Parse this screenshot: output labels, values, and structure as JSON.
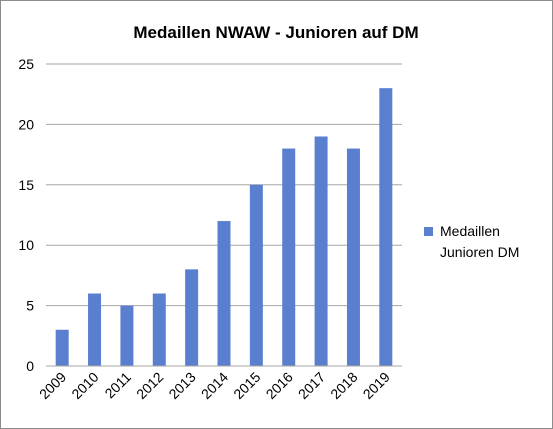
{
  "chart_data": {
    "type": "bar",
    "title": "Medaillen NWAW - Junioren auf DM",
    "xlabel": "",
    "ylabel": "",
    "categories": [
      "2009",
      "2010",
      "2011",
      "2012",
      "2013",
      "2014",
      "2015",
      "2016",
      "2017",
      "2018",
      "2019"
    ],
    "series": [
      {
        "name": "Medaillen Junioren DM",
        "values": [
          3,
          6,
          5,
          6,
          8,
          12,
          15,
          18,
          19,
          18,
          23
        ],
        "color": "#5b7fcf"
      }
    ],
    "ylim": [
      0,
      25
    ],
    "yticks": [
      0,
      5,
      10,
      15,
      20,
      25
    ],
    "grid": true,
    "legend_position": "right"
  },
  "legend": {
    "line1": "Medaillen",
    "line2": "Junioren DM"
  }
}
